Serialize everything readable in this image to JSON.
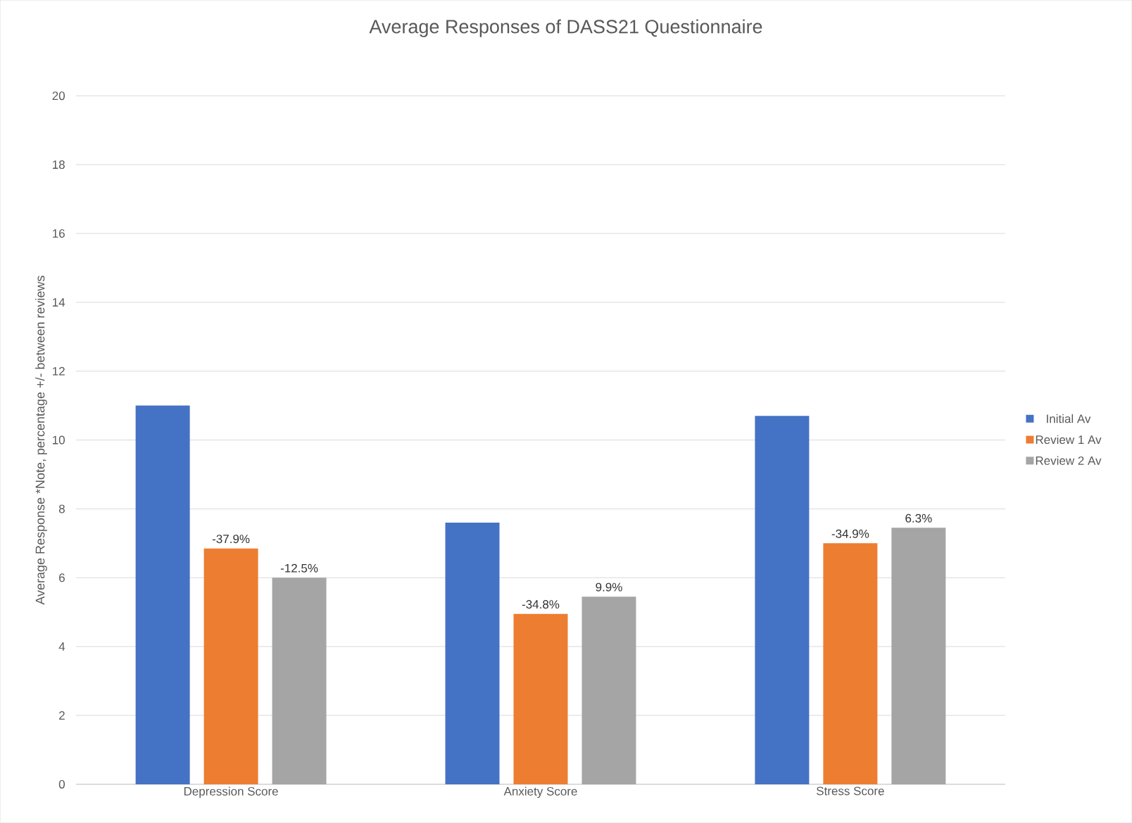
{
  "chart_data": {
    "type": "bar",
    "title": "Average Responses of DASS21 Questionnaire",
    "ylabel": "Average Response *Note, percentage +/- between reviews",
    "categories": [
      "Depression Score",
      "Anxiety Score",
      "Stress Score"
    ],
    "series": [
      {
        "name": "Initial Av",
        "color": "#4472c4",
        "values": [
          11.0,
          7.6,
          10.7
        ]
      },
      {
        "name": "Review 1 Av",
        "color": "#ed7d31",
        "values": [
          6.85,
          4.95,
          7.0
        ]
      },
      {
        "name": "Review 2 Av",
        "color": "#a5a5a5",
        "values": [
          6.0,
          5.45,
          7.45
        ]
      }
    ],
    "annotations": [
      "-37.9%",
      "-12.5%",
      "-34.8%",
      "9.9%",
      "-34.9%",
      "6.3%"
    ],
    "ylim": [
      0,
      20
    ],
    "yticks": [
      0,
      2,
      4,
      6,
      8,
      10,
      12,
      14,
      16,
      18,
      20
    ],
    "grid": "y",
    "legend": "right"
  }
}
